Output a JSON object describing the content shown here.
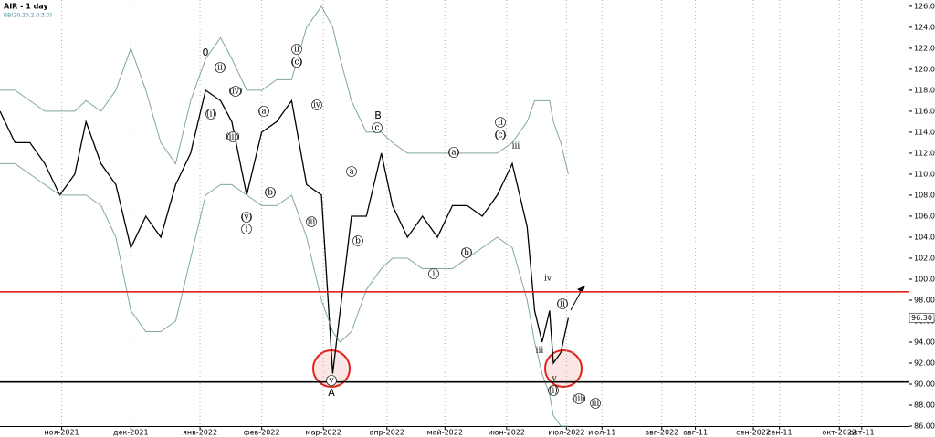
{
  "chart_data": {
    "type": "line",
    "title": "AIR - 1 day",
    "subtitle": "BB(20,20,2.0,3.0)",
    "x": [
      0,
      4,
      8,
      12,
      16,
      20,
      23,
      27,
      31,
      35,
      39,
      43,
      47,
      51,
      55,
      59,
      62,
      66,
      70,
      74,
      78,
      82,
      86,
      89,
      91,
      94,
      98,
      102,
      105,
      109,
      113,
      117,
      121,
      125,
      129,
      133,
      137,
      141,
      143,
      145,
      147,
      148,
      150,
      152
    ],
    "series": [
      {
        "color": "#000000",
        "values": [
          116,
          113,
          113,
          111,
          108,
          110,
          115,
          111,
          109,
          103,
          106,
          104,
          109,
          112,
          118,
          117,
          115,
          108,
          114,
          115,
          117,
          109,
          108,
          91,
          97,
          106,
          106,
          112,
          107,
          104,
          106,
          104,
          107,
          107,
          106,
          108,
          111,
          105,
          97,
          94,
          97,
          92,
          93,
          96.3
        ]
      },
      {
        "color": "#7fa89a",
        "values": [
          118,
          118,
          117,
          116,
          116,
          116,
          117,
          116,
          118,
          122,
          118,
          113,
          111,
          117,
          121,
          123,
          121,
          118,
          118,
          119,
          119,
          124,
          126,
          124,
          121,
          117,
          114,
          114,
          113,
          112,
          112,
          112,
          112,
          112,
          112,
          112,
          113,
          115,
          117,
          117,
          117,
          115,
          113,
          110
        ]
      },
      {
        "color": "#7fa89a",
        "values": [
          111,
          111,
          110,
          109,
          108,
          108,
          108,
          107,
          104,
          97,
          95,
          95,
          96,
          102,
          108,
          109,
          109,
          108,
          107,
          107,
          108,
          104,
          98,
          95,
          94,
          95,
          99,
          101,
          102,
          102,
          101,
          101,
          101,
          102,
          103,
          104,
          103,
          98,
          94,
          91,
          89,
          87,
          86,
          86
        ]
      }
    ],
    "xlim": [
      0,
      243
    ],
    "ylim": [
      86,
      126.6
    ],
    "xticks": [
      {
        "value": 16.5,
        "label": "ноя-2021"
      },
      {
        "value": 35,
        "label": "дек-2021"
      },
      {
        "value": 53.5,
        "label": "янв-2022"
      },
      {
        "value": 70,
        "label": "фев-2022"
      },
      {
        "value": 86.5,
        "label": "мар-2022"
      },
      {
        "value": 103.5,
        "label": "апр-2022"
      },
      {
        "value": 119,
        "label": "май-2022"
      },
      {
        "value": 135.5,
        "label": "июн-2022"
      },
      {
        "value": 151.5,
        "label": "июл-2022"
      },
      {
        "value": 161,
        "label": "июл-11"
      },
      {
        "value": 177,
        "label": "авг-2022"
      },
      {
        "value": 186,
        "label": "авг-11"
      },
      {
        "value": 201.5,
        "label": "сен-2022"
      },
      {
        "value": 208.5,
        "label": "сен-11"
      },
      {
        "value": 224.5,
        "label": "окт-2022"
      },
      {
        "value": 230.5,
        "label": "окт-11"
      }
    ],
    "yticks": [
      {
        "value": 86,
        "label": "86.00"
      },
      {
        "value": 88,
        "label": "88.00"
      },
      {
        "value": 90,
        "label": "90.00"
      },
      {
        "value": 92,
        "label": "92.00"
      },
      {
        "value": 94,
        "label": "94.00"
      },
      {
        "value": 96,
        "label": "96.00"
      },
      {
        "value": 98,
        "label": "98.00"
      },
      {
        "value": 100,
        "label": "100.00"
      },
      {
        "value": 102,
        "label": "102.00"
      },
      {
        "value": 104,
        "label": "104.00"
      },
      {
        "value": 106,
        "label": "106.00"
      },
      {
        "value": 108,
        "label": "108.00"
      },
      {
        "value": 110,
        "label": "110.00"
      },
      {
        "value": 112,
        "label": "112.00"
      },
      {
        "value": 114,
        "label": "114.00"
      },
      {
        "value": 116,
        "label": "116.00"
      },
      {
        "value": 118,
        "label": "118.00"
      },
      {
        "value": 120,
        "label": "120.00"
      },
      {
        "value": 122,
        "label": "122.00"
      },
      {
        "value": 124,
        "label": "124.00"
      },
      {
        "value": 126,
        "label": "126.00"
      }
    ],
    "levels": [
      {
        "value": 98.8,
        "color": "#e0231c"
      },
      {
        "value": 90.2,
        "color": "#000000"
      }
    ],
    "price_label": {
      "value": 96.3,
      "label": "96.30"
    },
    "annotations": [
      "0",
      "(ii)",
      "(iv)",
      "(i)",
      "(iii)",
      "(v)",
      "i",
      "ii",
      "(c)",
      "(a)",
      "(b)",
      "iv",
      "iii",
      "v",
      "A",
      "B",
      "c",
      "a",
      "b",
      "(a)",
      "(b)",
      "i",
      "ii",
      "(c)",
      "iii",
      "iv",
      "(ii)",
      "iii",
      "v",
      "(i)",
      "(iii)",
      "iii"
    ]
  }
}
